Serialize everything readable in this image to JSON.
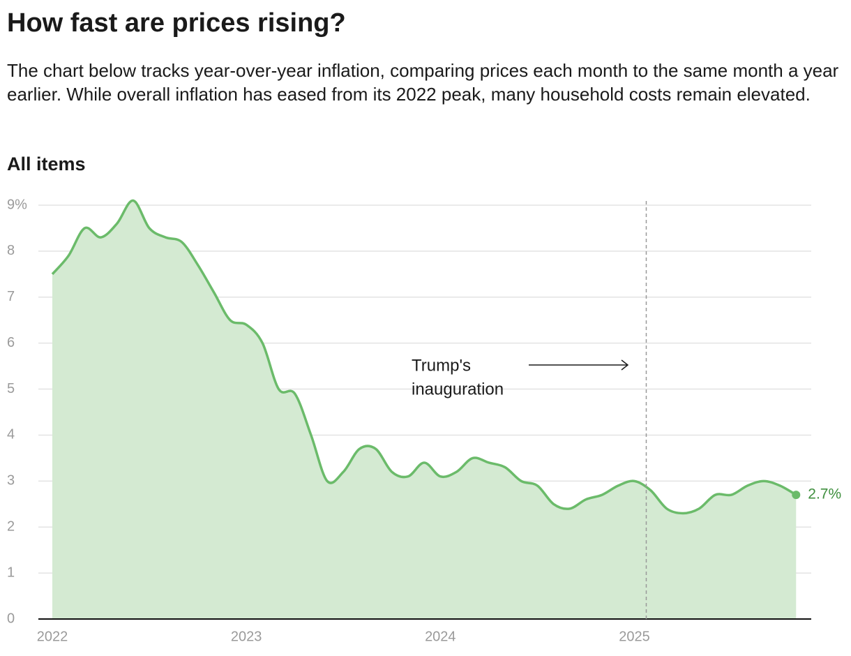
{
  "header": {
    "title": "How fast are prices rising?",
    "subtitle": "The chart below tracks year-over-year inflation, comparing prices each month to the same month a year earlier. While overall inflation has eased from its 2022 peak, many household costs remain elevated."
  },
  "chart_data": {
    "type": "area",
    "title": "All items",
    "categories": [
      "2022",
      null,
      null,
      null,
      null,
      null,
      null,
      null,
      null,
      null,
      null,
      null,
      "2023",
      null,
      null,
      null,
      null,
      null,
      null,
      null,
      null,
      null,
      null,
      null,
      "2024",
      null,
      null,
      null,
      null,
      null,
      null,
      null,
      null,
      null,
      null,
      null,
      "2025",
      null,
      null,
      null,
      null,
      null,
      null,
      null,
      null,
      null,
      null
    ],
    "values": [
      7.5,
      7.9,
      8.5,
      8.3,
      8.6,
      9.1,
      8.5,
      8.3,
      8.2,
      7.7,
      7.1,
      6.5,
      6.4,
      6.0,
      5.0,
      4.9,
      4.0,
      3.0,
      3.2,
      3.7,
      3.7,
      3.2,
      3.1,
      3.4,
      3.1,
      3.2,
      3.5,
      3.4,
      3.3,
      3.0,
      2.9,
      2.5,
      2.4,
      2.6,
      2.7,
      2.9,
      3.0,
      2.8,
      2.4,
      2.3,
      2.4,
      2.7,
      2.7,
      2.9,
      3.0,
      2.9,
      2.7
    ],
    "value_labels": [
      null,
      null,
      null,
      null,
      null,
      null,
      null,
      null,
      null,
      null,
      null,
      null,
      null,
      null,
      null,
      null,
      null,
      null,
      null,
      null,
      null,
      null,
      null,
      null,
      null,
      null,
      null,
      null,
      null,
      null,
      null,
      null,
      null,
      null,
      null,
      null,
      null,
      null,
      null,
      null,
      null,
      null,
      null,
      null,
      null,
      null,
      "2.7%"
    ],
    "color": "#6bbb6a",
    "fill": "#d4ead2",
    "ylim": [
      0,
      9
    ],
    "yticks": [
      0,
      1,
      2,
      3,
      4,
      5,
      6,
      7,
      8,
      {
        "value": 9,
        "label": "9%"
      }
    ],
    "grid": true,
    "annotation": {
      "lines": [
        "Trump's",
        "inauguration"
      ]
    }
  }
}
